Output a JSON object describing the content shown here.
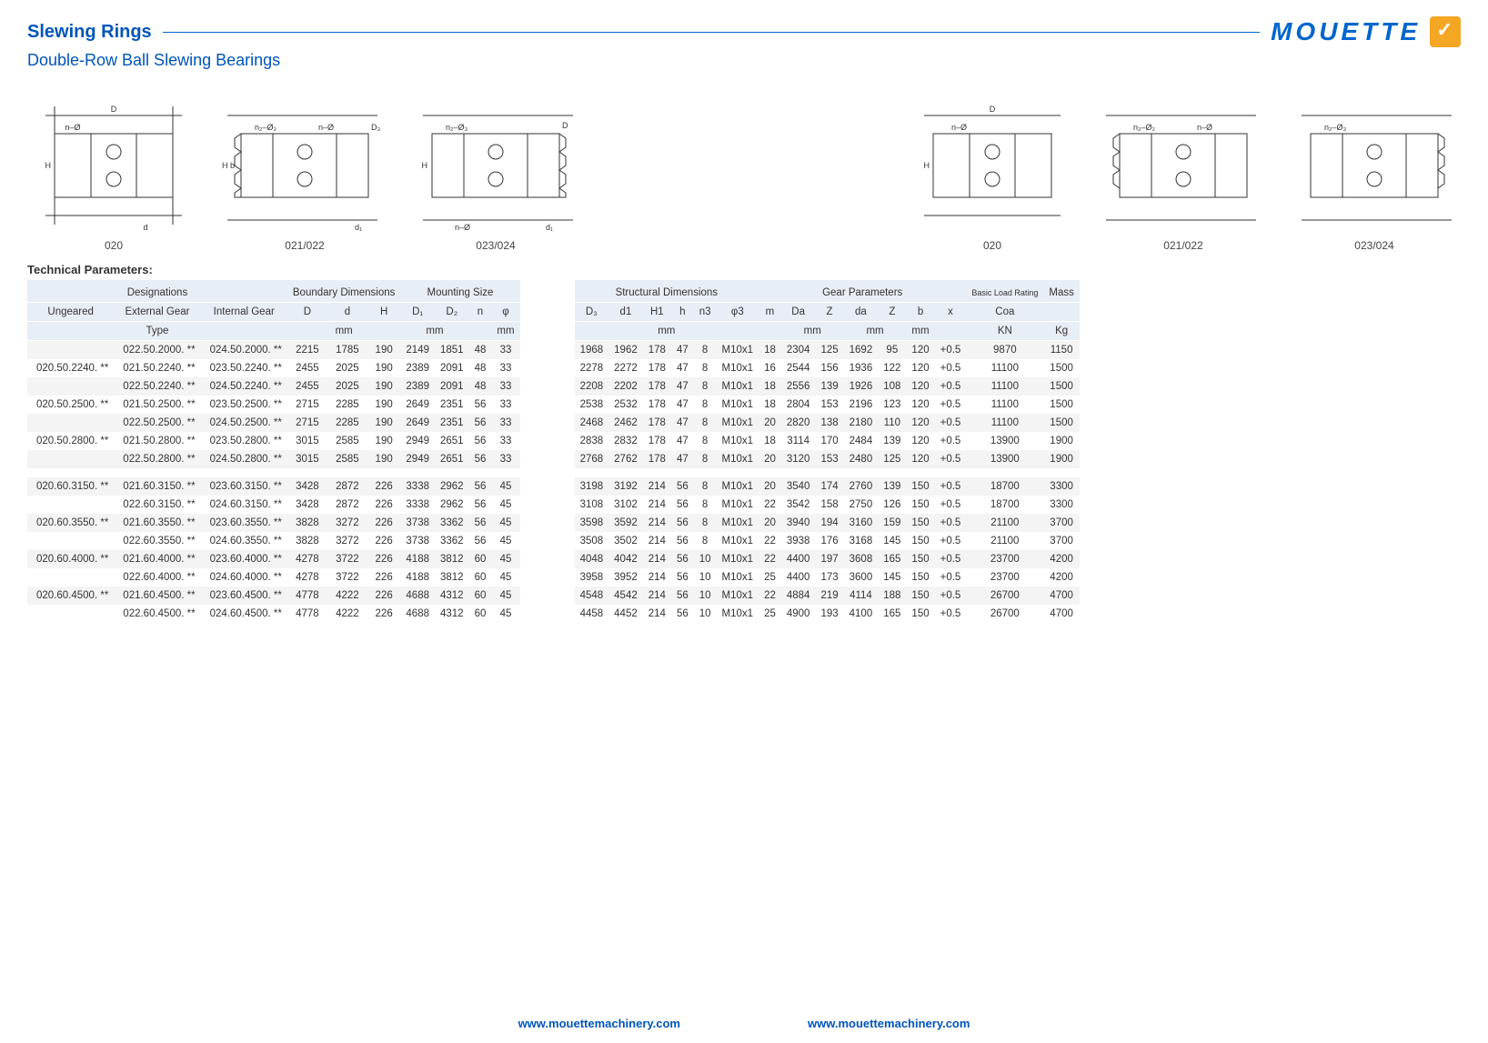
{
  "header": {
    "title": "Slewing Rings",
    "subtitle": "Double-Row Ball Slewing Bearings",
    "logo_text": "MOUETTE"
  },
  "diagram_labels": [
    "020",
    "021/022",
    "023/024",
    "020",
    "021/022",
    "023/024"
  ],
  "params_title": "Technical Parameters:",
  "left_table": {
    "group_headers": [
      "Designations",
      "Boundary Dimensions",
      "Mounting Size"
    ],
    "sub_headers": [
      "Ungeared",
      "External Gear",
      "Internal Gear",
      "D",
      "d",
      "H",
      "D₁",
      "D₂",
      "n",
      "φ"
    ],
    "unit_row": [
      "Type",
      "mm",
      "mm",
      "",
      "mm"
    ],
    "rows": [
      [
        "",
        "022.50.2000. **",
        "024.50.2000. **",
        "2215",
        "1785",
        "190",
        "2149",
        "1851",
        "48",
        "33"
      ],
      [
        "020.50.2240. **",
        "021.50.2240. **",
        "023.50.2240. **",
        "2455",
        "2025",
        "190",
        "2389",
        "2091",
        "48",
        "33"
      ],
      [
        "",
        "022.50.2240. **",
        "024.50.2240. **",
        "2455",
        "2025",
        "190",
        "2389",
        "2091",
        "48",
        "33"
      ],
      [
        "020.50.2500. **",
        "021.50.2500. **",
        "023.50.2500. **",
        "2715",
        "2285",
        "190",
        "2649",
        "2351",
        "56",
        "33"
      ],
      [
        "",
        "022.50.2500. **",
        "024.50.2500. **",
        "2715",
        "2285",
        "190",
        "2649",
        "2351",
        "56",
        "33"
      ],
      [
        "020.50.2800. **",
        "021.50.2800. **",
        "023.50.2800. **",
        "3015",
        "2585",
        "190",
        "2949",
        "2651",
        "56",
        "33"
      ],
      [
        "",
        "022.50.2800. **",
        "024.50.2800. **",
        "3015",
        "2585",
        "190",
        "2949",
        "2651",
        "56",
        "33"
      ],
      "__spacer__",
      [
        "020.60.3150. **",
        "021.60.3150. **",
        "023.60.3150. **",
        "3428",
        "2872",
        "226",
        "3338",
        "2962",
        "56",
        "45"
      ],
      [
        "",
        "022.60.3150. **",
        "024.60.3150. **",
        "3428",
        "2872",
        "226",
        "3338",
        "2962",
        "56",
        "45"
      ],
      [
        "020.60.3550. **",
        "021.60.3550. **",
        "023.60.3550. **",
        "3828",
        "3272",
        "226",
        "3738",
        "3362",
        "56",
        "45"
      ],
      [
        "",
        "022.60.3550. **",
        "024.60.3550. **",
        "3828",
        "3272",
        "226",
        "3738",
        "3362",
        "56",
        "45"
      ],
      [
        "020.60.4000. **",
        "021.60.4000. **",
        "023.60.4000. **",
        "4278",
        "3722",
        "226",
        "4188",
        "3812",
        "60",
        "45"
      ],
      [
        "",
        "022.60.4000. **",
        "024.60.4000. **",
        "4278",
        "3722",
        "226",
        "4188",
        "3812",
        "60",
        "45"
      ],
      [
        "020.60.4500. **",
        "021.60.4500. **",
        "023.60.4500. **",
        "4778",
        "4222",
        "226",
        "4688",
        "4312",
        "60",
        "45"
      ],
      [
        "",
        "022.60.4500. **",
        "024.60.4500. **",
        "4778",
        "4222",
        "226",
        "4688",
        "4312",
        "60",
        "45"
      ]
    ]
  },
  "right_table": {
    "group_headers": [
      "Structural Dimensions",
      "Gear Parameters",
      "Basic Load Rating",
      "Mass"
    ],
    "sub_headers": [
      "D₃",
      "d1",
      "H1",
      "h",
      "n3",
      "φ3",
      "m",
      "Da",
      "Z",
      "da",
      "Z",
      "b",
      "x",
      "Coa",
      ""
    ],
    "unit_row": [
      "mm",
      "",
      "mm",
      "mm",
      "mm",
      "",
      "KN",
      "Kg"
    ],
    "unit_spans": [
      6,
      1,
      2,
      2,
      1,
      1,
      1,
      1
    ],
    "rows": [
      [
        "1968",
        "1962",
        "178",
        "47",
        "8",
        "M10x1",
        "18",
        "2304",
        "125",
        "1692",
        "95",
        "120",
        "+0.5",
        "9870",
        "1150"
      ],
      [
        "2278",
        "2272",
        "178",
        "47",
        "8",
        "M10x1",
        "16",
        "2544",
        "156",
        "1936",
        "122",
        "120",
        "+0.5",
        "11100",
        "1500"
      ],
      [
        "2208",
        "2202",
        "178",
        "47",
        "8",
        "M10x1",
        "18",
        "2556",
        "139",
        "1926",
        "108",
        "120",
        "+0.5",
        "11100",
        "1500"
      ],
      [
        "2538",
        "2532",
        "178",
        "47",
        "8",
        "M10x1",
        "18",
        "2804",
        "153",
        "2196",
        "123",
        "120",
        "+0.5",
        "11100",
        "1500"
      ],
      [
        "2468",
        "2462",
        "178",
        "47",
        "8",
        "M10x1",
        "20",
        "2820",
        "138",
        "2180",
        "110",
        "120",
        "+0.5",
        "11100",
        "1500"
      ],
      [
        "2838",
        "2832",
        "178",
        "47",
        "8",
        "M10x1",
        "18",
        "3114",
        "170",
        "2484",
        "139",
        "120",
        "+0.5",
        "13900",
        "1900"
      ],
      [
        "2768",
        "2762",
        "178",
        "47",
        "8",
        "M10x1",
        "20",
        "3120",
        "153",
        "2480",
        "125",
        "120",
        "+0.5",
        "13900",
        "1900"
      ],
      "__spacer__",
      [
        "3198",
        "3192",
        "214",
        "56",
        "8",
        "M10x1",
        "20",
        "3540",
        "174",
        "2760",
        "139",
        "150",
        "+0.5",
        "18700",
        "3300"
      ],
      [
        "3108",
        "3102",
        "214",
        "56",
        "8",
        "M10x1",
        "22",
        "3542",
        "158",
        "2750",
        "126",
        "150",
        "+0.5",
        "18700",
        "3300"
      ],
      [
        "3598",
        "3592",
        "214",
        "56",
        "8",
        "M10x1",
        "20",
        "3940",
        "194",
        "3160",
        "159",
        "150",
        "+0.5",
        "21100",
        "3700"
      ],
      [
        "3508",
        "3502",
        "214",
        "56",
        "8",
        "M10x1",
        "22",
        "3938",
        "176",
        "3168",
        "145",
        "150",
        "+0.5",
        "21100",
        "3700"
      ],
      [
        "4048",
        "4042",
        "214",
        "56",
        "10",
        "M10x1",
        "22",
        "4400",
        "197",
        "3608",
        "165",
        "150",
        "+0.5",
        "23700",
        "4200"
      ],
      [
        "3958",
        "3952",
        "214",
        "56",
        "10",
        "M10x1",
        "25",
        "4400",
        "173",
        "3600",
        "145",
        "150",
        "+0.5",
        "23700",
        "4200"
      ],
      [
        "4548",
        "4542",
        "214",
        "56",
        "10",
        "M10x1",
        "22",
        "4884",
        "219",
        "4114",
        "188",
        "150",
        "+0.5",
        "26700",
        "4700"
      ],
      [
        "4458",
        "4452",
        "214",
        "56",
        "10",
        "M10x1",
        "25",
        "4900",
        "193",
        "4100",
        "165",
        "150",
        "+0.5",
        "26700",
        "4700"
      ]
    ]
  },
  "footer_url": "www.mouettemachinery.com",
  "colors": {
    "brand_blue": "#0055bb",
    "header_bg": "#e8eef5",
    "row_odd": "#f4f4f4",
    "accent": "#f5a623"
  }
}
